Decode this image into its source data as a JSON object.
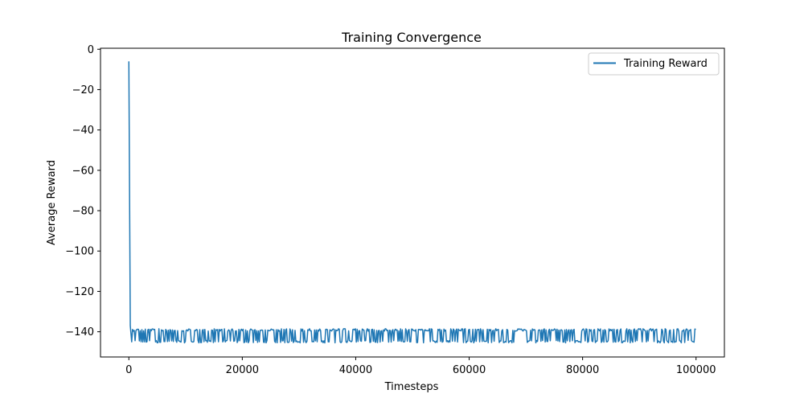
{
  "chart_data": {
    "type": "line",
    "title": "Training Convergence",
    "xlabel": "Timesteps",
    "ylabel": "Average Reward",
    "xlim": [
      -5000,
      105000
    ],
    "ylim": [
      -152.5,
      0.5
    ],
    "xticks": [
      0,
      20000,
      40000,
      60000,
      80000,
      100000
    ],
    "xtick_labels": [
      "0",
      "20000",
      "40000",
      "60000",
      "80000",
      "100000"
    ],
    "yticks": [
      0,
      -20,
      -40,
      -60,
      -80,
      -100,
      -120,
      -140
    ],
    "ytick_labels": [
      "0",
      "−20",
      "−40",
      "−60",
      "−80",
      "−100",
      "−120",
      "−140"
    ],
    "grid": false,
    "legend_position": "top-right",
    "series": [
      {
        "name": "Training Reward",
        "color": "#1f77b4",
        "x_start": 0,
        "x_end": 100000,
        "initial_points": [
          [
            0,
            -6
          ],
          [
            250,
            -137
          ],
          [
            500,
            -145
          ]
        ],
        "noise_level_high": -138.5,
        "noise_level_low": -145.5,
        "x_step": 150
      }
    ]
  }
}
